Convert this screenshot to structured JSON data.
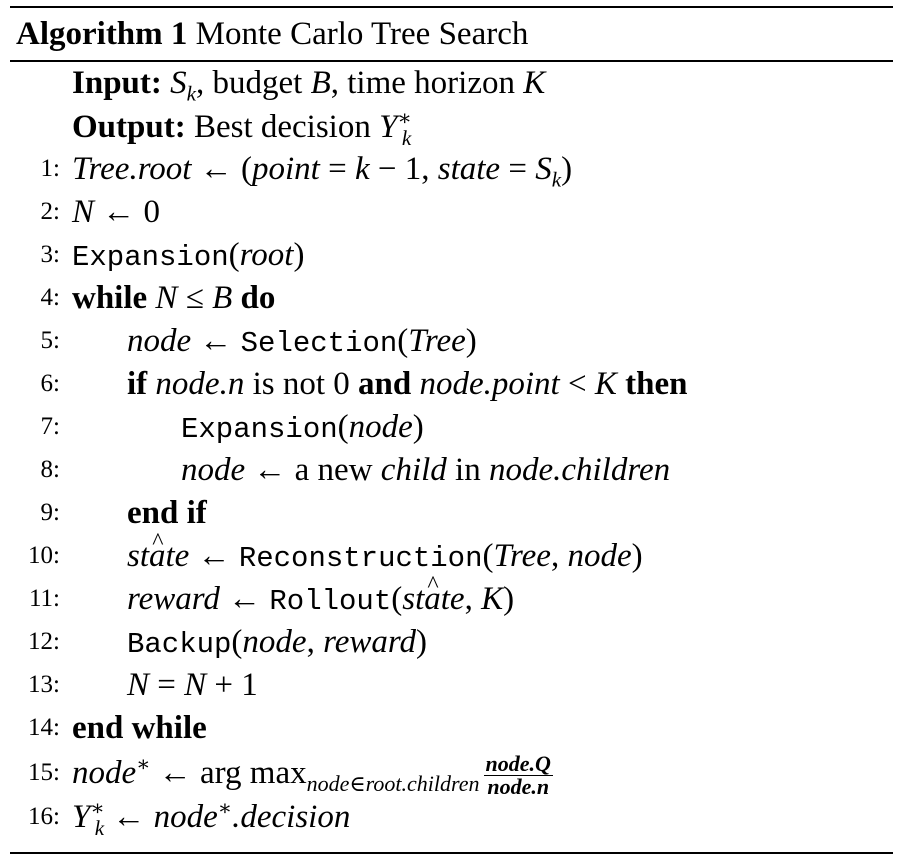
{
  "algorithm": {
    "label": "Algorithm 1",
    "title": "Monte Carlo Tree Search",
    "input_label": "Input:",
    "output_label": "Output:",
    "output_text": "Best decision",
    "lines": [
      {
        "n": "1:"
      },
      {
        "n": "2:"
      },
      {
        "n": "3:"
      },
      {
        "n": "4:"
      },
      {
        "n": "5:"
      },
      {
        "n": "6:"
      },
      {
        "n": "7:"
      },
      {
        "n": "8:"
      },
      {
        "n": "9:"
      },
      {
        "n": "10:"
      },
      {
        "n": "11:"
      },
      {
        "n": "12:"
      },
      {
        "n": "13:"
      },
      {
        "n": "14:"
      },
      {
        "n": "15:"
      },
      {
        "n": "16:"
      }
    ],
    "keywords": {
      "while": "while",
      "do": "do",
      "if": "if",
      "is_not": "is not 0",
      "and": "and",
      "then": "then",
      "end_if": "end if",
      "end_while": "end while"
    },
    "procedures": {
      "expansion": "Expansion",
      "selection": "Selection",
      "reconstruction": "Reconstruction",
      "rollout": "Rollout",
      "backup": "Backup"
    }
  }
}
